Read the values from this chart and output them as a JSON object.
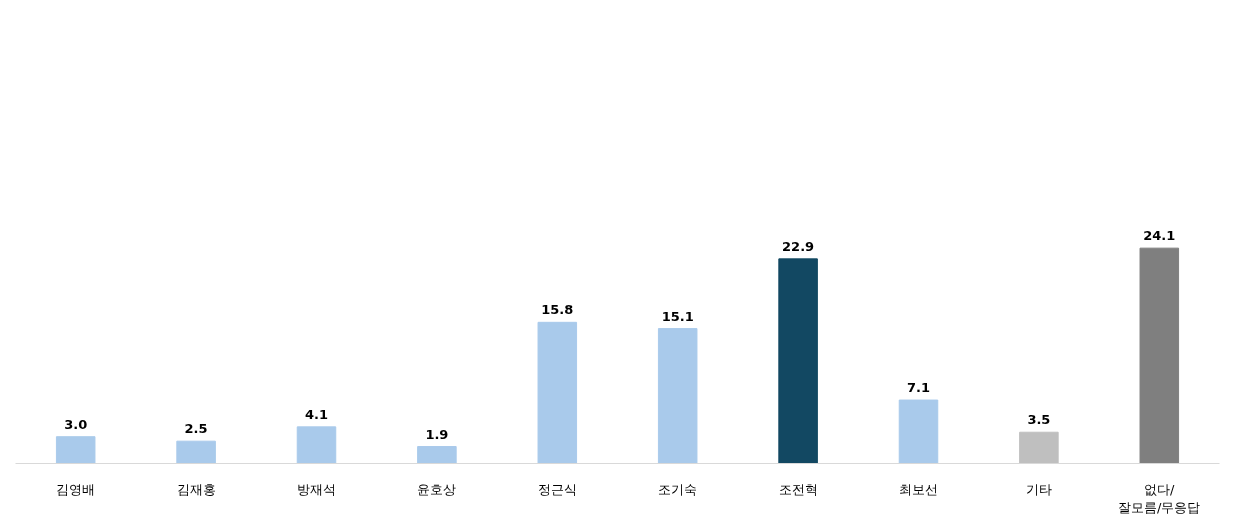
{
  "chart_data": {
    "type": "bar",
    "categories": [
      "김영배",
      "김재홍",
      "방재석",
      "윤호상",
      "정근식",
      "조기숙",
      "조전혁",
      "최보선",
      "기타",
      "없다/\n잘모름/무응답"
    ],
    "values": [
      3.0,
      2.5,
      4.1,
      1.9,
      15.8,
      15.1,
      22.9,
      7.1,
      3.5,
      24.1
    ],
    "colors": [
      "#a9caeb",
      "#a9caeb",
      "#a9caeb",
      "#a9caeb",
      "#a9caeb",
      "#a9caeb",
      "#124862",
      "#a9caeb",
      "#bfbfbf",
      "#7f7f7f"
    ],
    "value_labels": [
      "3.0",
      "2.5",
      "4.1",
      "1.9",
      "15.8",
      "15.1",
      "22.9",
      "7.1",
      "3.5",
      "24.1"
    ],
    "grid": false
  }
}
